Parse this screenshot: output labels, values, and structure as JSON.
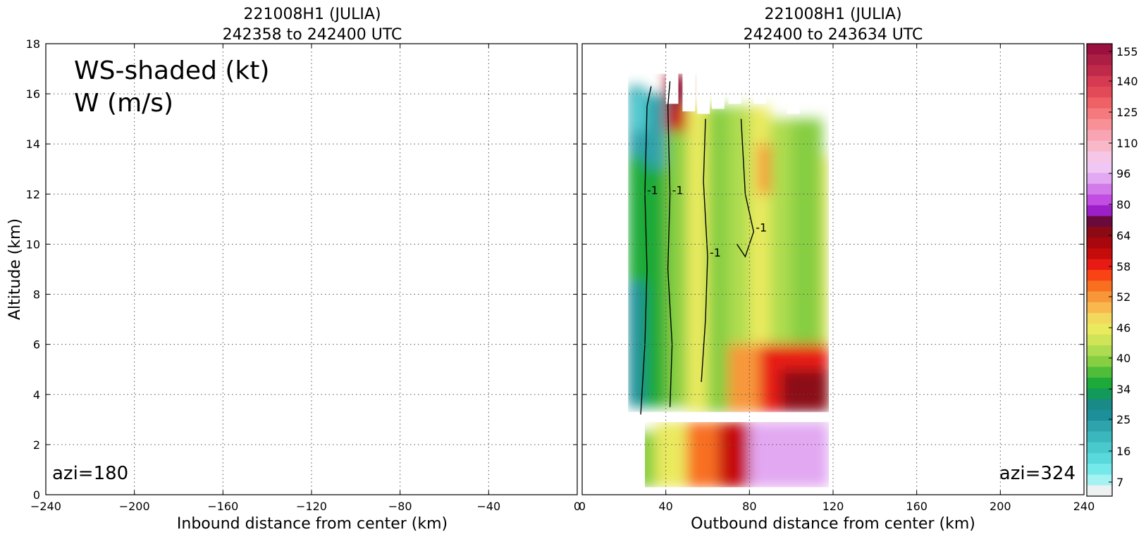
{
  "chart_data": [
    {
      "type": "heatmap",
      "title": "221008H1 (JULIA)",
      "subtitle": "242358 to 242400 UTC",
      "xlabel": "Inbound distance from center (km)",
      "ylabel": "Altitude (km)",
      "xlim": [
        -240,
        0
      ],
      "ylim": [
        0,
        18
      ],
      "xticks": [
        "−240",
        "−200",
        "−160",
        "−120",
        "−80",
        "−40",
        "0"
      ],
      "xtick_values": [
        -240,
        -200,
        -160,
        -120,
        -80,
        -40,
        0
      ],
      "yticks": [
        "0",
        "2",
        "4",
        "6",
        "8",
        "10",
        "12",
        "14",
        "16",
        "18"
      ],
      "ytick_values": [
        0,
        2,
        4,
        6,
        8,
        10,
        12,
        14,
        16,
        18
      ],
      "grid": true,
      "annotation_line1": "WS-shaded (kt)",
      "annotation_line2": "W (m/s)",
      "azimuth_label": "azi=180",
      "data": "empty (no observations)"
    },
    {
      "type": "heatmap",
      "title": "221008H1 (JULIA)",
      "subtitle": "242400 to 243634 UTC",
      "xlabel": "Outbound distance from center (km)",
      "xlim": [
        0,
        240
      ],
      "ylim": [
        0,
        18
      ],
      "xticks": [
        "0",
        "40",
        "80",
        "120",
        "160",
        "200",
        "240"
      ],
      "xtick_values": [
        0,
        40,
        80,
        120,
        160,
        200,
        240
      ],
      "grid": true,
      "azimuth_label": "azi=324",
      "contour_label": "-1",
      "data_extent_x": [
        22,
        118
      ],
      "data_extent_y": [
        0.3,
        16.8
      ],
      "gap_altitude": [
        2.9,
        3.3
      ],
      "cells": [
        {
          "x0": 22,
          "x1": 30,
          "y0": 3.5,
          "y1": 8.5,
          "ws": 27
        },
        {
          "x0": 22,
          "x1": 30,
          "y0": 8.5,
          "y1": 13.5,
          "ws": 34
        },
        {
          "x0": 22,
          "x1": 30,
          "y0": 13.5,
          "y1": 16.3,
          "ws": 25
        },
        {
          "x0": 25,
          "x1": 30,
          "y0": 14.5,
          "y1": 16.0,
          "ws": 16
        },
        {
          "x0": 30,
          "x1": 40,
          "y0": 3.5,
          "y1": 16.0,
          "ws": 34
        },
        {
          "x0": 30,
          "x1": 40,
          "y0": 13.0,
          "y1": 16.0,
          "ws": 25
        },
        {
          "x0": 40,
          "x1": 50,
          "y0": 3.5,
          "y1": 14.5,
          "ws": 37
        },
        {
          "x0": 40,
          "x1": 50,
          "y0": 14.5,
          "y1": 16.8,
          "ws": 58
        },
        {
          "x0": 42,
          "x1": 48,
          "y0": 15.5,
          "y1": 16.7,
          "ws": 64
        },
        {
          "x0": 50,
          "x1": 60,
          "y0": 3.3,
          "y1": 15.5,
          "ws": 43
        },
        {
          "x0": 60,
          "x1": 70,
          "y0": 3.3,
          "y1": 15.5,
          "ws": 37
        },
        {
          "x0": 70,
          "x1": 80,
          "y0": 3.3,
          "y1": 15.5,
          "ws": 40
        },
        {
          "x0": 80,
          "x1": 90,
          "y0": 6.0,
          "y1": 15.5,
          "ws": 43
        },
        {
          "x0": 84,
          "x1": 90,
          "y0": 12.0,
          "y1": 14.0,
          "ws": 49
        },
        {
          "x0": 90,
          "x1": 100,
          "y0": 6.0,
          "y1": 15.0,
          "ws": 40
        },
        {
          "x0": 100,
          "x1": 115,
          "y0": 6.0,
          "y1": 15.0,
          "ws": 37
        },
        {
          "x0": 115,
          "x1": 118,
          "y0": 6.0,
          "y1": 13.5,
          "ws": 43
        },
        {
          "x0": 70,
          "x1": 85,
          "y0": 3.3,
          "y1": 6.0,
          "ws": 49
        },
        {
          "x0": 85,
          "x1": 118,
          "y0": 3.3,
          "y1": 6.0,
          "ws": 55
        },
        {
          "x0": 95,
          "x1": 118,
          "y0": 3.3,
          "y1": 5.0,
          "ws": 61
        },
        {
          "x0": 25,
          "x1": 35,
          "y0": 0.3,
          "y1": 2.5,
          "ws": 37
        },
        {
          "x0": 35,
          "x1": 50,
          "y0": 0.3,
          "y1": 2.9,
          "ws": 43
        },
        {
          "x0": 50,
          "x1": 65,
          "y0": 0.3,
          "y1": 2.9,
          "ws": 52
        },
        {
          "x0": 65,
          "x1": 80,
          "y0": 0.3,
          "y1": 2.9,
          "ws": 58
        },
        {
          "x0": 80,
          "x1": 118,
          "y0": 0.3,
          "y1": 2.9,
          "ws": 85
        }
      ],
      "w_contours_minus1": [
        [
          [
            28,
            3.2
          ],
          [
            30,
            6
          ],
          [
            31,
            9
          ],
          [
            30,
            12
          ],
          [
            31,
            15.5
          ],
          [
            33,
            16.3
          ]
        ],
        [
          [
            42,
            3.5
          ],
          [
            43,
            6
          ],
          [
            41,
            9
          ],
          [
            42,
            12
          ],
          [
            41,
            15.5
          ],
          [
            42,
            16.5
          ]
        ],
        [
          [
            57,
            4.5
          ],
          [
            59,
            7
          ],
          [
            60,
            9.5
          ],
          [
            58,
            12.5
          ],
          [
            59,
            15
          ]
        ],
        [
          [
            74,
            10
          ],
          [
            78,
            9.5
          ],
          [
            82,
            10.5
          ],
          [
            78,
            12
          ],
          [
            76,
            15
          ]
        ]
      ]
    }
  ],
  "colorbar": {
    "label_values": [
      "155",
      "140",
      "125",
      "110",
      "96",
      "80",
      "64",
      "58",
      "52",
      "46",
      "40",
      "34",
      "25",
      "16",
      "7"
    ],
    "colors": [
      "#9c1040",
      "#ad1e45",
      "#c02a4a",
      "#d63a52",
      "#e34a58",
      "#ee6166",
      "#f47a7e",
      "#f79197",
      "#f8a4b3",
      "#f9b8c8",
      "#f6c6e6",
      "#f0c6f4",
      "#e2a8f2",
      "#d37aea",
      "#c14de2",
      "#9d1fc8",
      "#6a0a3c",
      "#8b0a14",
      "#a8070d",
      "#c60b0b",
      "#e81a14",
      "#fa4314",
      "#f86f20",
      "#f8973a",
      "#f8b84e",
      "#f2d95e",
      "#eaea5e",
      "#cfe457",
      "#aedc50",
      "#86ce42",
      "#4fbd3a",
      "#1eaa38",
      "#129a5a",
      "#1a8a86",
      "#1d8f9a",
      "#2ea3ab",
      "#3ab7bd",
      "#4ac9cc",
      "#5ad9dd",
      "#75e8ea",
      "#a4f2f2",
      "#eef1f1"
    ]
  }
}
